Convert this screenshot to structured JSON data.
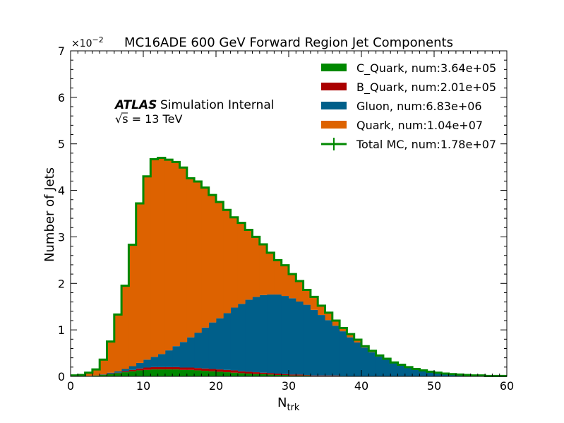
{
  "chart_data": {
    "type": "bar",
    "stacked": true,
    "histogram": true,
    "title": "MC16ADE 600 GeV Forward Region Jet Components",
    "xlabel_main": "N",
    "xlabel_sub": "trk",
    "ylabel": "Number of Jets",
    "y_multiplier": "×10",
    "y_multiplier_exp": "−2",
    "xlim": [
      0,
      60
    ],
    "ylim": [
      0,
      7
    ],
    "x_ticks": [
      0,
      10,
      20,
      30,
      40,
      50,
      60
    ],
    "y_ticks": [
      0,
      1,
      2,
      3,
      4,
      5,
      6,
      7
    ],
    "bin_edges_start": 0,
    "bin_width": 1,
    "legend_position": "top-right",
    "annotation": {
      "experiment": "ATLAS",
      "status": "Simulation Internal",
      "energy_prefix": "√s",
      "energy_value": " = 13 TeV"
    },
    "series": [
      {
        "name": "C_Quark, num:3.64e+05",
        "color": "#008800",
        "values": [
          0,
          0,
          0.01,
          0.02,
          0.03,
          0.05,
          0.07,
          0.09,
          0.11,
          0.13,
          0.14,
          0.15,
          0.15,
          0.15,
          0.15,
          0.14,
          0.14,
          0.13,
          0.12,
          0.11,
          0.1,
          0.09,
          0.08,
          0.07,
          0.06,
          0.05,
          0.05,
          0.04,
          0.03,
          0.03,
          0.02,
          0.02,
          0.02,
          0.01,
          0.01,
          0.01,
          0.01,
          0.01,
          0,
          0,
          0,
          0,
          0,
          0,
          0,
          0,
          0,
          0,
          0,
          0,
          0,
          0,
          0,
          0,
          0,
          0,
          0,
          0,
          0,
          0
        ]
      },
      {
        "name": "B_Quark, num:2.01e+05",
        "color": "#aa0000",
        "values": [
          0,
          0,
          0,
          0,
          0,
          0.01,
          0.01,
          0.02,
          0.03,
          0.04,
          0.05,
          0.05,
          0.05,
          0.05,
          0.05,
          0.05,
          0.05,
          0.05,
          0.05,
          0.05,
          0.05,
          0.05,
          0.05,
          0.04,
          0.04,
          0.04,
          0.03,
          0.03,
          0.03,
          0.02,
          0.02,
          0.02,
          0.01,
          0.01,
          0.01,
          0.01,
          0.01,
          0,
          0,
          0,
          0,
          0,
          0,
          0,
          0,
          0,
          0,
          0,
          0,
          0,
          0,
          0,
          0,
          0,
          0,
          0,
          0,
          0,
          0,
          0
        ]
      },
      {
        "name": "Gluon, num:6.83e+06",
        "color": "#005f8a",
        "values": [
          0,
          0,
          0,
          0,
          0.01,
          0.02,
          0.03,
          0.05,
          0.08,
          0.12,
          0.17,
          0.22,
          0.28,
          0.36,
          0.45,
          0.55,
          0.65,
          0.76,
          0.88,
          1.0,
          1.1,
          1.22,
          1.35,
          1.45,
          1.55,
          1.62,
          1.67,
          1.69,
          1.7,
          1.68,
          1.64,
          1.57,
          1.51,
          1.41,
          1.3,
          1.19,
          1.07,
          0.96,
          0.84,
          0.73,
          0.62,
          0.52,
          0.43,
          0.36,
          0.29,
          0.24,
          0.19,
          0.15,
          0.12,
          0.1,
          0.08,
          0.06,
          0.05,
          0.04,
          0.03,
          0.02,
          0.02,
          0.01,
          0.01,
          0.01
        ]
      },
      {
        "name": "Quark, num:1.04e+07",
        "color": "#dd6200",
        "values": [
          0.02,
          0.03,
          0.07,
          0.13,
          0.32,
          0.67,
          1.22,
          1.79,
          2.61,
          3.43,
          3.94,
          4.25,
          4.22,
          4.1,
          3.96,
          3.75,
          3.42,
          3.25,
          3.01,
          2.74,
          2.5,
          2.22,
          1.94,
          1.74,
          1.5,
          1.29,
          1.09,
          0.9,
          0.74,
          0.66,
          0.52,
          0.44,
          0.32,
          0.28,
          0.2,
          0.16,
          0.11,
          0.07,
          0.07,
          0.06,
          0.03,
          0.03,
          0.02,
          0.02,
          0.01,
          0.01,
          0.01,
          0.01,
          0.01,
          0,
          0,
          0,
          0,
          0,
          0,
          0,
          0,
          0,
          0,
          0
        ]
      }
    ],
    "total": {
      "name": "Total MC, num:1.78e+07",
      "color": "#008800"
    }
  }
}
